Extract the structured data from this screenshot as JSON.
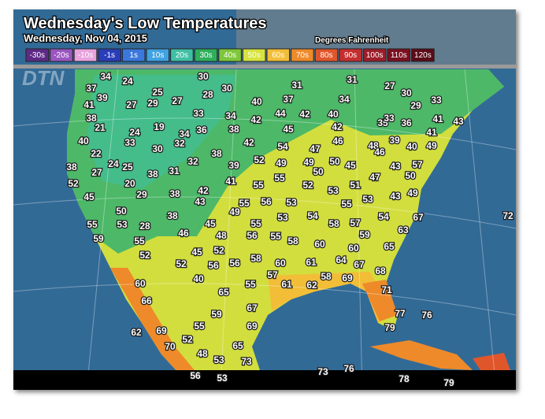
{
  "header": {
    "title": "Wednesday's Low Temperatures",
    "date": "Wednesday, Nov 04, 2015",
    "units": "Degrees Fahrenheit",
    "logo": "DTN"
  },
  "legend": [
    {
      "label": "-30s",
      "color": "#5e2a86"
    },
    {
      "label": "-20s",
      "color": "#9a56c0"
    },
    {
      "label": "-10s",
      "color": "#e8a3df"
    },
    {
      "label": "-1s",
      "color": "#2a3db8"
    },
    {
      "label": "1s",
      "color": "#3a78dc"
    },
    {
      "label": "10s",
      "color": "#3fa2e2"
    },
    {
      "label": "20s",
      "color": "#3fbfa3"
    },
    {
      "label": "30s",
      "color": "#2fae5c"
    },
    {
      "label": "40s",
      "color": "#7ec63a"
    },
    {
      "label": "50s",
      "color": "#d6e33f"
    },
    {
      "label": "60s",
      "color": "#f2be38"
    },
    {
      "label": "70s",
      "color": "#ee8a2a"
    },
    {
      "label": "80s",
      "color": "#e0562b"
    },
    {
      "label": "90s",
      "color": "#c52e2e"
    },
    {
      "label": "100s",
      "color": "#9c1d2a"
    },
    {
      "label": "110s",
      "color": "#7a1020"
    },
    {
      "label": "120s",
      "color": "#5a0c18"
    }
  ],
  "map": {
    "temperatures": [
      34,
      24,
      30,
      37,
      25,
      28,
      30,
      31,
      31,
      27,
      30,
      41,
      39,
      27,
      29,
      27,
      40,
      37,
      34,
      29,
      33,
      38,
      33,
      34,
      42,
      44,
      42,
      40,
      35,
      33,
      36,
      41,
      43,
      21,
      19,
      36,
      38,
      45,
      42,
      41,
      24,
      34,
      32,
      40,
      33,
      30,
      42,
      54,
      47,
      46,
      48,
      46,
      39,
      40,
      49,
      22,
      38,
      38,
      24,
      25,
      27,
      38,
      31,
      32,
      39,
      52,
      49,
      49,
      50,
      50,
      45,
      43,
      57,
      52,
      20,
      41,
      55,
      55,
      52,
      53,
      51,
      47,
      50,
      29,
      38,
      42,
      43,
      45,
      55,
      56,
      53,
      55,
      53,
      43,
      49,
      50,
      49,
      54,
      54,
      67,
      72,
      55,
      53,
      28,
      38,
      45,
      55,
      53,
      58,
      57,
      59,
      55,
      46,
      48,
      56,
      55,
      58,
      59,
      63,
      60,
      60,
      65,
      52,
      45,
      52,
      58,
      60,
      61,
      64,
      67,
      52,
      56,
      56,
      68,
      40,
      57,
      58,
      69,
      60,
      55,
      61,
      62,
      71,
      65,
      66,
      67,
      59,
      77,
      76,
      55,
      69,
      79,
      62,
      69,
      52,
      70,
      65,
      48,
      53,
      73,
      73,
      76,
      56,
      53,
      78,
      79
    ]
  }
}
